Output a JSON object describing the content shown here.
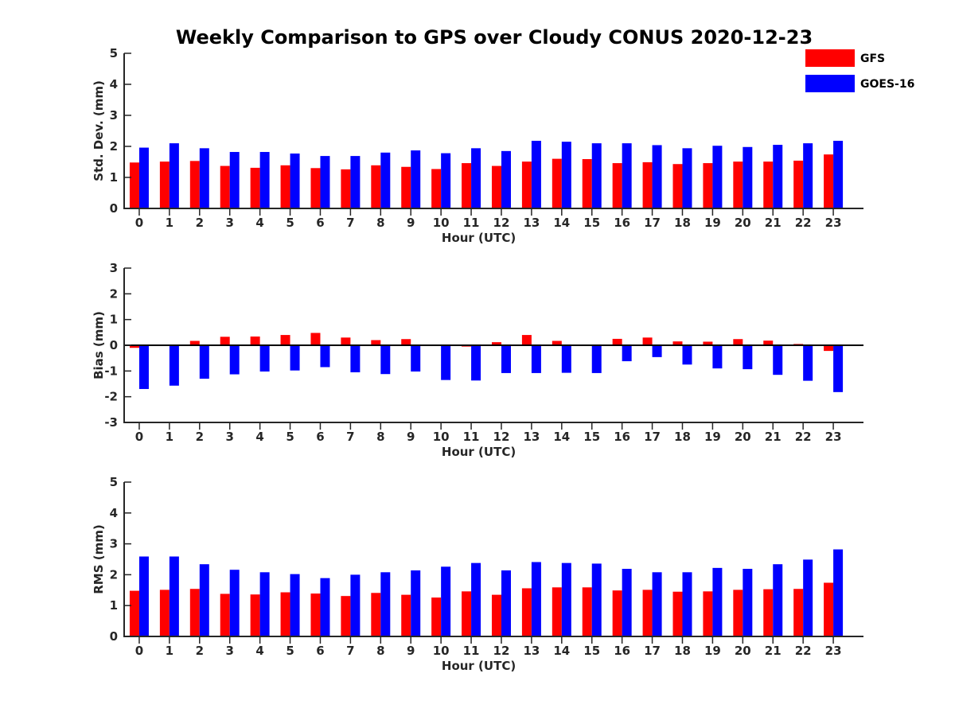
{
  "figure": {
    "title": "Weekly Comparison to GPS over Cloudy CONUS 2020-12-23"
  },
  "legend": {
    "placement": "top-right",
    "items": [
      {
        "name": "GFS",
        "color": "#ff0000"
      },
      {
        "name": "GOES-16",
        "color": "#0000ff"
      }
    ]
  },
  "chart_data": [
    {
      "type": "bar",
      "ylabel": "Std. Dev. (mm)",
      "xlabel": "Hour (UTC)",
      "ylim": [
        0,
        5
      ],
      "yticks": [
        0,
        1,
        2,
        3,
        4,
        5
      ],
      "zero_line": false,
      "grid": false,
      "categories": [
        "0",
        "1",
        "2",
        "3",
        "4",
        "5",
        "6",
        "7",
        "8",
        "9",
        "10",
        "11",
        "12",
        "13",
        "14",
        "15",
        "16",
        "17",
        "18",
        "19",
        "20",
        "21",
        "22",
        "23"
      ],
      "series": [
        {
          "name": "GFS",
          "color": "#ff0000",
          "values": [
            1.48,
            1.51,
            1.53,
            1.37,
            1.31,
            1.39,
            1.3,
            1.26,
            1.39,
            1.34,
            1.27,
            1.46,
            1.37,
            1.51,
            1.6,
            1.59,
            1.46,
            1.49,
            1.43,
            1.46,
            1.51,
            1.51,
            1.54,
            1.74
          ]
        },
        {
          "name": "GOES-16",
          "color": "#0000ff",
          "values": [
            1.96,
            2.1,
            1.94,
            1.82,
            1.82,
            1.77,
            1.69,
            1.69,
            1.8,
            1.87,
            1.78,
            1.94,
            1.85,
            2.18,
            2.15,
            2.1,
            2.1,
            2.04,
            1.94,
            2.02,
            1.98,
            2.05,
            2.1,
            2.18
          ]
        }
      ]
    },
    {
      "type": "bar",
      "ylabel": "Bias (mm)",
      "xlabel": "Hour (UTC)",
      "ylim": [
        -3,
        3
      ],
      "yticks": [
        -3,
        -2,
        -1,
        0,
        1,
        2,
        3
      ],
      "zero_line": true,
      "grid": false,
      "categories": [
        "0",
        "1",
        "2",
        "3",
        "4",
        "5",
        "6",
        "7",
        "8",
        "9",
        "10",
        "11",
        "12",
        "13",
        "14",
        "15",
        "16",
        "17",
        "18",
        "19",
        "20",
        "21",
        "22",
        "23"
      ],
      "series": [
        {
          "name": "GFS",
          "color": "#ff0000",
          "values": [
            -0.1,
            0.0,
            0.17,
            0.33,
            0.34,
            0.4,
            0.48,
            0.3,
            0.2,
            0.24,
            0.0,
            -0.05,
            0.12,
            0.4,
            0.17,
            0.0,
            0.25,
            0.3,
            0.15,
            0.14,
            0.24,
            0.18,
            0.05,
            -0.22
          ]
        },
        {
          "name": "GOES-16",
          "color": "#0000ff",
          "values": [
            -1.7,
            -1.57,
            -1.3,
            -1.13,
            -1.02,
            -0.98,
            -0.85,
            -1.05,
            -1.12,
            -1.02,
            -1.35,
            -1.37,
            -1.08,
            -1.08,
            -1.07,
            -1.08,
            -0.62,
            -0.46,
            -0.75,
            -0.9,
            -0.93,
            -1.15,
            -1.38,
            -1.82
          ]
        }
      ]
    },
    {
      "type": "bar",
      "ylabel": "RMS (mm)",
      "xlabel": "Hour (UTC)",
      "ylim": [
        0,
        5
      ],
      "yticks": [
        0,
        1,
        2,
        3,
        4,
        5
      ],
      "zero_line": false,
      "grid": false,
      "categories": [
        "0",
        "1",
        "2",
        "3",
        "4",
        "5",
        "6",
        "7",
        "8",
        "9",
        "10",
        "11",
        "12",
        "13",
        "14",
        "15",
        "16",
        "17",
        "18",
        "19",
        "20",
        "21",
        "22",
        "23"
      ],
      "series": [
        {
          "name": "GFS",
          "color": "#ff0000",
          "values": [
            1.48,
            1.51,
            1.54,
            1.38,
            1.36,
            1.43,
            1.39,
            1.31,
            1.41,
            1.35,
            1.26,
            1.46,
            1.35,
            1.56,
            1.59,
            1.59,
            1.49,
            1.51,
            1.45,
            1.46,
            1.51,
            1.53,
            1.54,
            1.74
          ]
        },
        {
          "name": "GOES-16",
          "color": "#0000ff",
          "values": [
            2.59,
            2.59,
            2.34,
            2.16,
            2.08,
            2.02,
            1.89,
            2.0,
            2.08,
            2.14,
            2.26,
            2.38,
            2.14,
            2.41,
            2.38,
            2.36,
            2.19,
            2.08,
            2.08,
            2.22,
            2.19,
            2.34,
            2.49,
            2.82
          ]
        }
      ]
    }
  ]
}
